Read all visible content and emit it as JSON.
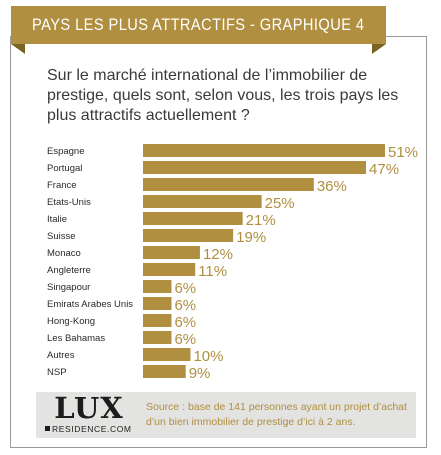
{
  "header": {
    "title": "PAYS LES PLUS ATTRACTIFS - GRAPHIQUE 4"
  },
  "question": "Sur le marché international de l’immobilier de prestige, quels sont, selon vous, les trois pays les plus attractifs actuellement ?",
  "colors": {
    "accent": "#b08f40",
    "accent_dark": "#7a6424",
    "footer_bg": "#e3e3e1"
  },
  "chart_data": {
    "type": "bar",
    "orientation": "horizontal",
    "categories": [
      "Espagne",
      "Portugal",
      "France",
      "Etats-Unis",
      "Italie",
      "Suisse",
      "Monaco",
      "Angleterre",
      "Singapour",
      "Emirats Arabes Unis",
      "Hong-Kong",
      "Les Bahamas",
      "Autres",
      "NSP"
    ],
    "values": [
      51,
      47,
      36,
      25,
      21,
      19,
      12,
      11,
      6,
      6,
      6,
      6,
      10,
      9
    ],
    "value_labels": [
      "51%",
      "47%",
      "36%",
      "25%",
      "21%",
      "19%",
      "12%",
      "11%",
      "6%",
      "6%",
      "6%",
      "6%",
      "10%",
      "9%"
    ],
    "unit": "%",
    "xlim": [
      0,
      51
    ],
    "grid": false,
    "legend": "none"
  },
  "footer": {
    "logo_main": "LUX",
    "logo_sub": "RESIDENCE.COM",
    "source": "Source : base de 141 personnes ayant un projet d’achat d’un bien immobilier de prestige d’ici à 2 ans."
  }
}
